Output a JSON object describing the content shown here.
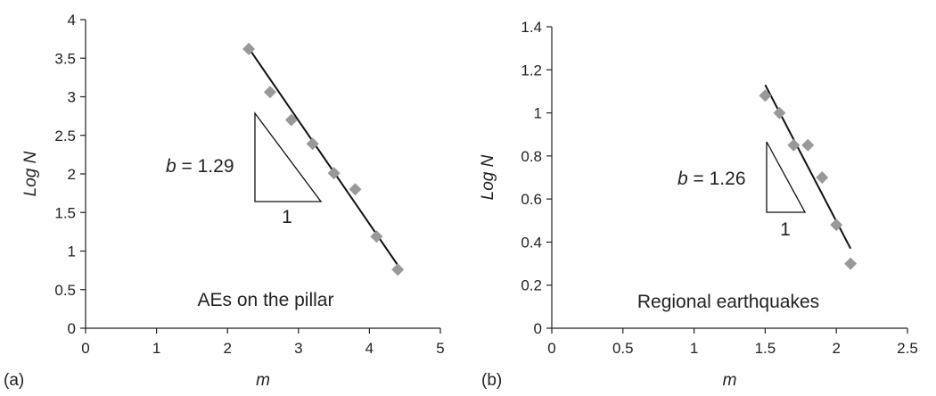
{
  "chart_data": [
    {
      "type": "scatter",
      "panel_label": "(a)",
      "xlabel": "m",
      "ylabel": "Log N",
      "xlim": [
        0,
        5
      ],
      "ylim": [
        0,
        4
      ],
      "xticks": [
        "0",
        "1",
        "2",
        "3",
        "4",
        "5"
      ],
      "yticks": [
        "0",
        "0.5",
        "1",
        "1.5",
        "2",
        "2.5",
        "3",
        "3.5",
        "4"
      ],
      "annotation": "AEs on the pillar",
      "slope_label": {
        "prefix": "b",
        "value": "= 1.29",
        "run": "1"
      },
      "points": [
        {
          "x": 2.3,
          "y": 3.62
        },
        {
          "x": 2.6,
          "y": 3.06
        },
        {
          "x": 2.9,
          "y": 2.7
        },
        {
          "x": 3.2,
          "y": 2.39
        },
        {
          "x": 3.5,
          "y": 2.01
        },
        {
          "x": 3.8,
          "y": 1.8
        },
        {
          "x": 4.1,
          "y": 1.19
        },
        {
          "x": 4.4,
          "y": 0.76
        }
      ],
      "fit_line": {
        "x": [
          2.3,
          4.45
        ],
        "y": [
          3.63,
          0.75
        ]
      },
      "grid": false,
      "colors": {
        "marker": "#999999",
        "line": "#111111",
        "axis": "#222222"
      }
    },
    {
      "type": "scatter",
      "panel_label": "(b)",
      "xlabel": "m",
      "ylabel": "Log N",
      "xlim": [
        0,
        2.5
      ],
      "ylim": [
        0,
        1.4
      ],
      "xticks": [
        "0",
        "0.5",
        "1",
        "1.5",
        "2",
        "2.5"
      ],
      "yticks": [
        "0",
        "0.2",
        "0.4",
        "0.6",
        "0.8",
        "1",
        "1.2",
        "1.4"
      ],
      "annotation": "Regional earthquakes",
      "slope_label": {
        "prefix": "b",
        "value": "= 1.26",
        "run": "1"
      },
      "points": [
        {
          "x": 1.5,
          "y": 1.08
        },
        {
          "x": 1.6,
          "y": 1.0
        },
        {
          "x": 1.7,
          "y": 0.85
        },
        {
          "x": 1.8,
          "y": 0.85
        },
        {
          "x": 1.9,
          "y": 0.7
        },
        {
          "x": 2.0,
          "y": 0.48
        },
        {
          "x": 2.1,
          "y": 0.3
        }
      ],
      "fit_line": {
        "x": [
          1.5,
          2.1
        ],
        "y": [
          1.13,
          0.37
        ]
      },
      "grid": false,
      "colors": {
        "marker": "#999999",
        "line": "#111111",
        "axis": "#222222"
      }
    }
  ]
}
